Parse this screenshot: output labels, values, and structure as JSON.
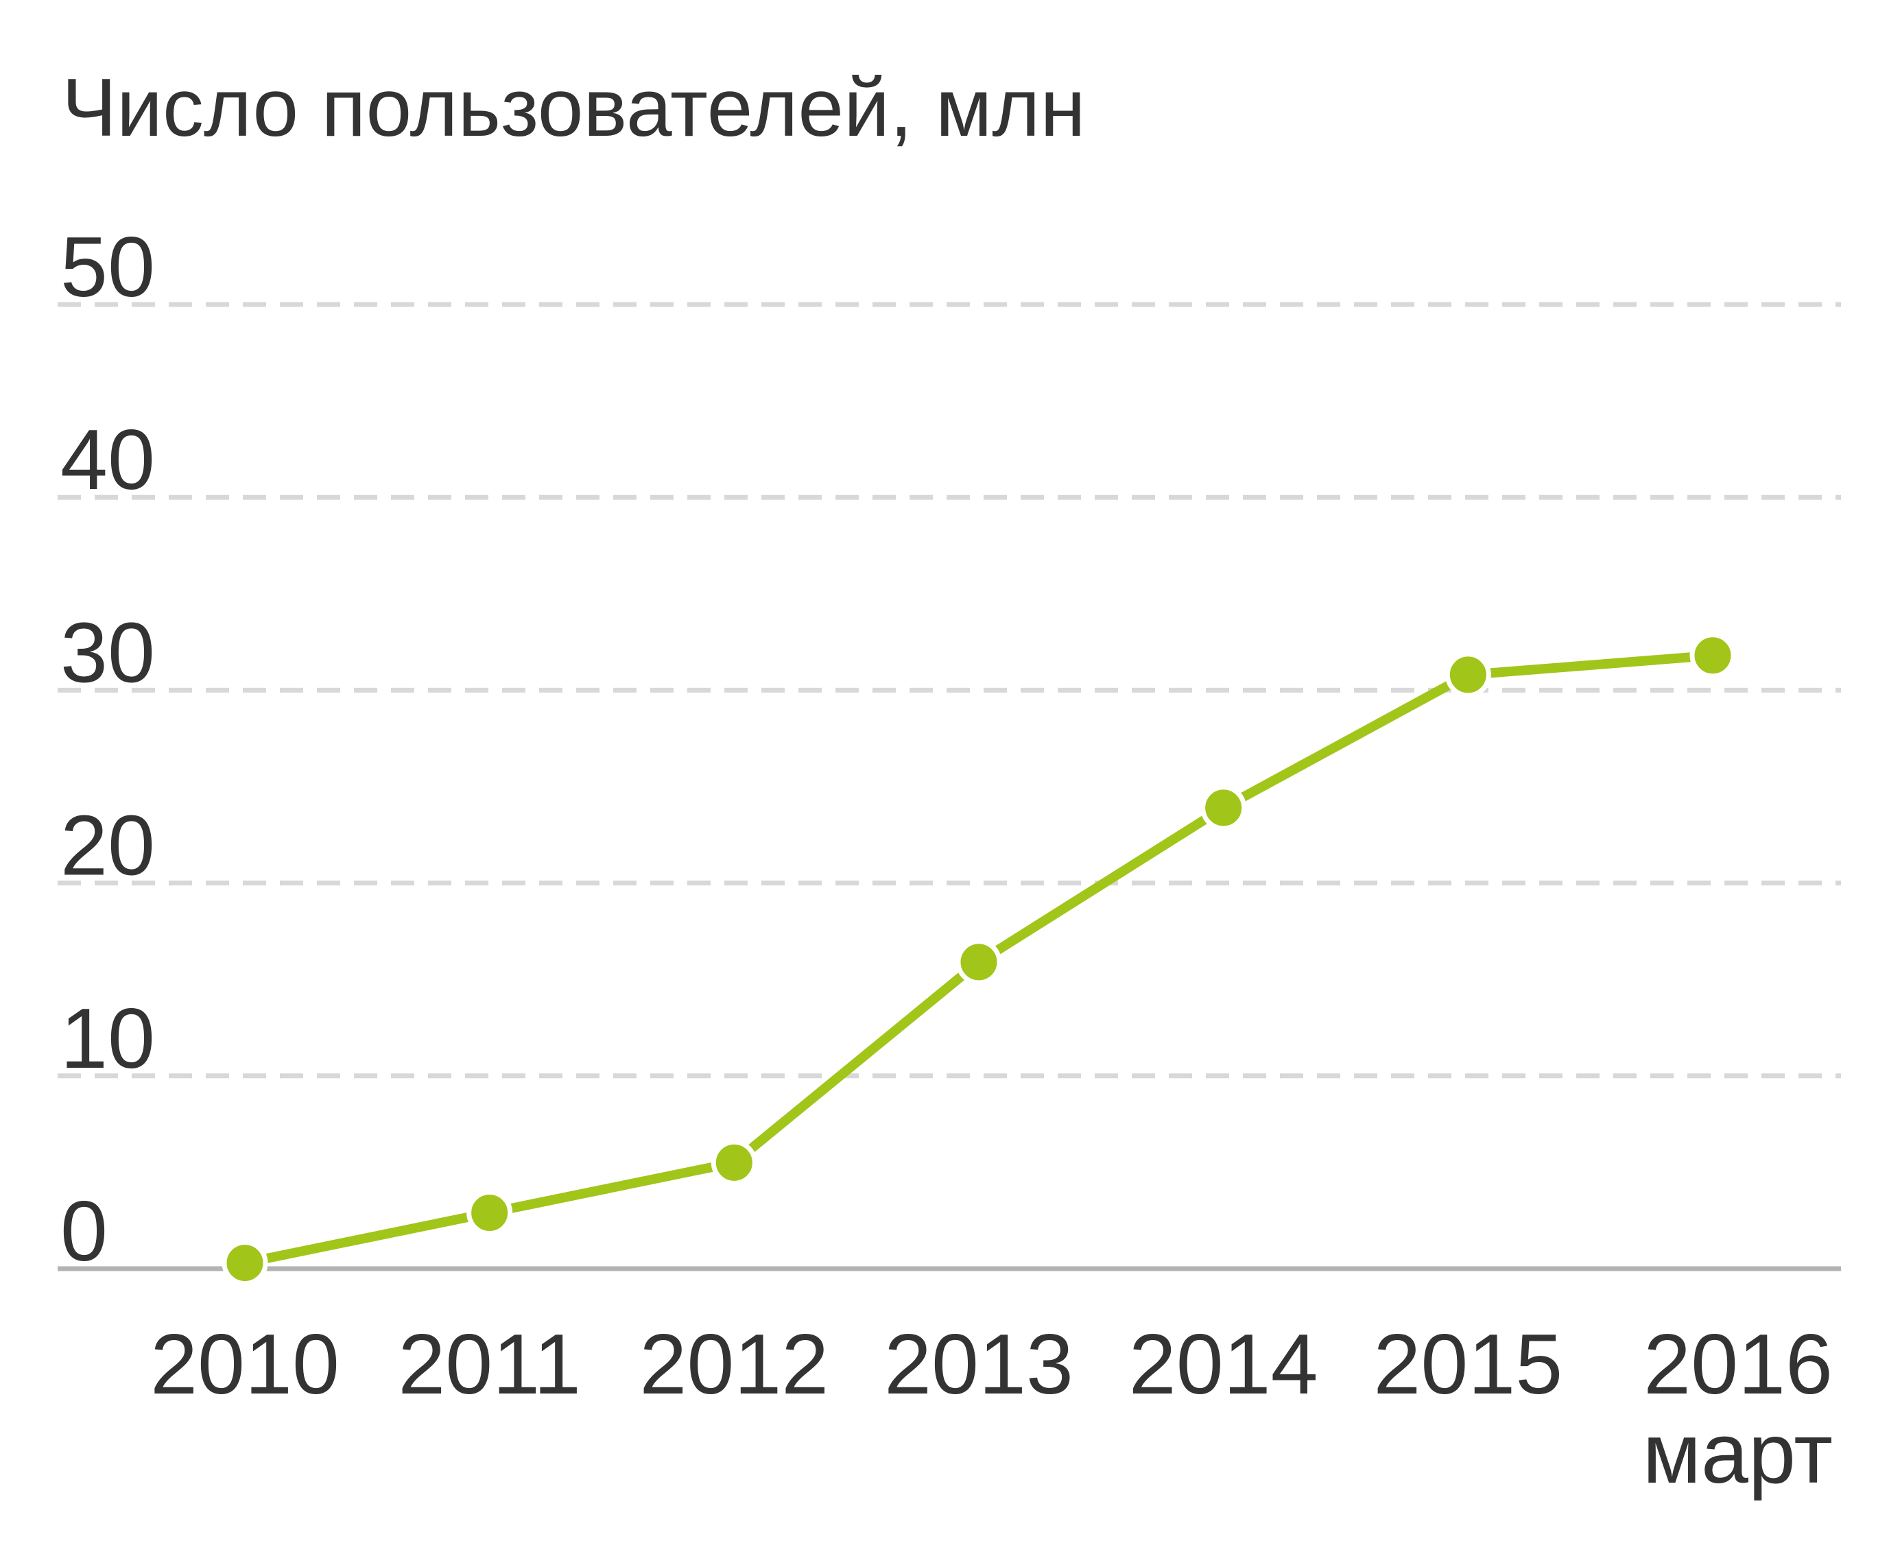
{
  "chart_data": {
    "type": "line",
    "title": "Число пользователей, млн",
    "xlabel": "",
    "ylabel": "",
    "categories": [
      "2010",
      "2011",
      "2012",
      "2013",
      "2014",
      "2015",
      "2016"
    ],
    "category_sublabels": [
      "",
      "",
      "",
      "",
      "",
      "",
      "март"
    ],
    "series": [
      {
        "values": [
          0.3,
          2.9,
          5.5,
          15.9,
          23.9,
          30.8,
          31.8
        ]
      }
    ],
    "y_ticks": [
      "0",
      "10",
      "20",
      "30",
      "40",
      "50"
    ],
    "ylim": [
      0,
      50
    ],
    "grid": true,
    "legend": "none",
    "colors": {
      "line": "#a1c519",
      "marker": "#a1c519",
      "grid": "#d8d8d8",
      "axis": "#b3b3b3",
      "text": "#333333"
    }
  }
}
